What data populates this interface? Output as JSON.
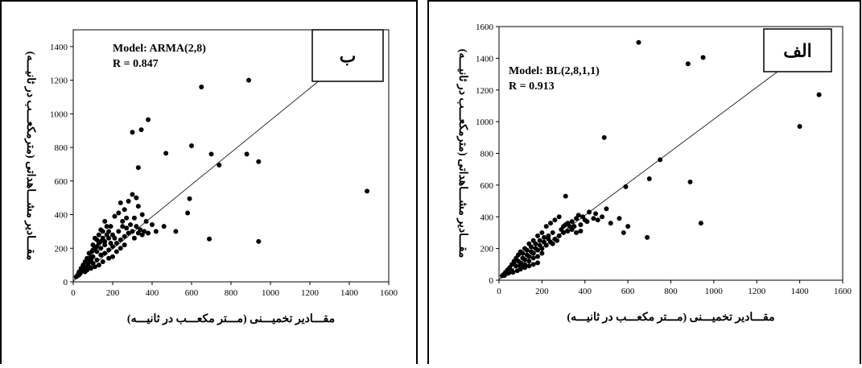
{
  "chart_data": [
    {
      "panel": "ب",
      "type": "scatter",
      "model_label": "Model: ARMA(2,8)",
      "r_label": "R = 0.847",
      "xlabel": "مقـــادیر تخمیـــنی (مـــتر مکعـــب در ثانیـــه)",
      "ylabel": "مقـــادیر مشـــاهداتی (مترمکعـــب در ثانیـــه)",
      "xlim": [
        0,
        1600
      ],
      "ylim": [
        0,
        1500
      ],
      "xticks": [
        0,
        200,
        400,
        600,
        800,
        1000,
        1200,
        1400,
        1600
      ],
      "yticks": [
        0,
        200,
        400,
        600,
        800,
        1000,
        1200,
        1400
      ],
      "fit_line": [
        [
          0,
          5
        ],
        [
          1480,
          1420
        ]
      ],
      "points": [
        [
          650,
          1160
        ],
        [
          890,
          1200
        ],
        [
          380,
          965
        ],
        [
          345,
          905
        ],
        [
          300,
          890
        ],
        [
          600,
          810
        ],
        [
          700,
          760
        ],
        [
          470,
          765
        ],
        [
          880,
          760
        ],
        [
          940,
          715
        ],
        [
          740,
          695
        ],
        [
          330,
          680
        ],
        [
          1490,
          540
        ],
        [
          940,
          240
        ],
        [
          690,
          255
        ],
        [
          590,
          495
        ],
        [
          580,
          410
        ],
        [
          520,
          300
        ],
        [
          460,
          330
        ],
        [
          420,
          300
        ],
        [
          400,
          340
        ],
        [
          370,
          360
        ],
        [
          350,
          400
        ],
        [
          330,
          450
        ],
        [
          320,
          500
        ],
        [
          300,
          520
        ],
        [
          280,
          480
        ],
        [
          260,
          430
        ],
        [
          240,
          470
        ],
        [
          270,
          380
        ],
        [
          250,
          360
        ],
        [
          230,
          410
        ],
        [
          210,
          390
        ],
        [
          190,
          330
        ],
        [
          180,
          300
        ],
        [
          160,
          360
        ],
        [
          170,
          280
        ],
        [
          150,
          260
        ],
        [
          140,
          310
        ],
        [
          130,
          230
        ],
        [
          120,
          250
        ],
        [
          110,
          200
        ],
        [
          100,
          220
        ],
        [
          95,
          180
        ],
        [
          90,
          150
        ],
        [
          80,
          170
        ],
        [
          70,
          140
        ],
        [
          60,
          120
        ],
        [
          50,
          100
        ],
        [
          40,
          80
        ],
        [
          30,
          60
        ],
        [
          25,
          45
        ],
        [
          20,
          35
        ],
        [
          15,
          30
        ],
        [
          60,
          60
        ],
        [
          80,
          90
        ],
        [
          100,
          110
        ],
        [
          120,
          130
        ],
        [
          140,
          160
        ],
        [
          160,
          170
        ],
        [
          180,
          190
        ],
        [
          200,
          210
        ],
        [
          220,
          230
        ],
        [
          240,
          250
        ],
        [
          260,
          270
        ],
        [
          280,
          290
        ],
        [
          300,
          300
        ],
        [
          200,
          150
        ],
        [
          180,
          140
        ],
        [
          150,
          120
        ],
        [
          130,
          100
        ],
        [
          110,
          90
        ],
        [
          90,
          80
        ],
        [
          70,
          70
        ],
        [
          240,
          200
        ],
        [
          260,
          220
        ],
        [
          220,
          180
        ],
        [
          310,
          260
        ],
        [
          330,
          290
        ],
        [
          350,
          280
        ],
        [
          210,
          260
        ],
        [
          190,
          230
        ],
        [
          230,
          300
        ],
        [
          250,
          330
        ],
        [
          120,
          180
        ],
        [
          140,
          200
        ],
        [
          160,
          220
        ],
        [
          100,
          150
        ],
        [
          80,
          120
        ],
        [
          60,
          90
        ],
        [
          130,
          280
        ],
        [
          110,
          260
        ],
        [
          150,
          300
        ],
        [
          170,
          330
        ],
        [
          290,
          340
        ],
        [
          310,
          380
        ],
        [
          270,
          320
        ],
        [
          320,
          330
        ],
        [
          340,
          310
        ],
        [
          360,
          300
        ],
        [
          380,
          290
        ],
        [
          200,
          280
        ],
        [
          180,
          260
        ],
        [
          160,
          240
        ],
        [
          140,
          240
        ],
        [
          120,
          210
        ],
        [
          100,
          190
        ],
        [
          90,
          130
        ],
        [
          75,
          110
        ],
        [
          55,
          75
        ],
        [
          45,
          65
        ],
        [
          35,
          50
        ],
        [
          28,
          40
        ]
      ]
    },
    {
      "panel": "الف",
      "type": "scatter",
      "model_label": "Model: BL(2,8,1,1)",
      "r_label": "R = 0.913",
      "xlabel": "مقـــادیر تخمیـــنی (مـــتر مکعـــب در ثانیـــه)",
      "ylabel": "مقـــادیر مشـــاهداتی (مترمکعـــب در ثانیـــه)",
      "xlim": [
        0,
        1600
      ],
      "ylim": [
        0,
        1600
      ],
      "xticks": [
        0,
        200,
        400,
        600,
        800,
        1000,
        1200,
        1400,
        1600
      ],
      "yticks": [
        0,
        200,
        400,
        600,
        800,
        1000,
        1200,
        1400,
        1600
      ],
      "fit_line": [
        [
          0,
          5
        ],
        [
          1420,
          1440
        ]
      ],
      "points": [
        [
          650,
          1500
        ],
        [
          950,
          1405
        ],
        [
          880,
          1365
        ],
        [
          1490,
          1170
        ],
        [
          1400,
          970
        ],
        [
          490,
          900
        ],
        [
          750,
          760
        ],
        [
          590,
          590
        ],
        [
          700,
          640
        ],
        [
          890,
          620
        ],
        [
          940,
          360
        ],
        [
          690,
          270
        ],
        [
          520,
          360
        ],
        [
          560,
          390
        ],
        [
          600,
          340
        ],
        [
          580,
          300
        ],
        [
          450,
          420
        ],
        [
          420,
          430
        ],
        [
          400,
          380
        ],
        [
          380,
          350
        ],
        [
          360,
          390
        ],
        [
          340,
          370
        ],
        [
          320,
          360
        ],
        [
          300,
          340
        ],
        [
          310,
          530
        ],
        [
          280,
          400
        ],
        [
          260,
          380
        ],
        [
          240,
          360
        ],
        [
          220,
          340
        ],
        [
          200,
          300
        ],
        [
          180,
          280
        ],
        [
          160,
          250
        ],
        [
          140,
          230
        ],
        [
          120,
          200
        ],
        [
          100,
          180
        ],
        [
          90,
          160
        ],
        [
          80,
          140
        ],
        [
          70,
          120
        ],
        [
          60,
          100
        ],
        [
          50,
          80
        ],
        [
          40,
          65
        ],
        [
          30,
          50
        ],
        [
          20,
          35
        ],
        [
          15,
          28
        ],
        [
          60,
          60
        ],
        [
          80,
          90
        ],
        [
          100,
          110
        ],
        [
          120,
          130
        ],
        [
          140,
          150
        ],
        [
          160,
          170
        ],
        [
          180,
          190
        ],
        [
          200,
          200
        ],
        [
          220,
          220
        ],
        [
          240,
          240
        ],
        [
          260,
          260
        ],
        [
          280,
          280
        ],
        [
          300,
          300
        ],
        [
          320,
          310
        ],
        [
          340,
          320
        ],
        [
          360,
          300
        ],
        [
          380,
          310
        ],
        [
          200,
          170
        ],
        [
          180,
          150
        ],
        [
          160,
          140
        ],
        [
          140,
          120
        ],
        [
          120,
          100
        ],
        [
          100,
          90
        ],
        [
          250,
          230
        ],
        [
          270,
          250
        ],
        [
          230,
          260
        ],
        [
          210,
          240
        ],
        [
          190,
          220
        ],
        [
          170,
          200
        ],
        [
          150,
          180
        ],
        [
          130,
          160
        ],
        [
          110,
          140
        ],
        [
          90,
          120
        ],
        [
          70,
          100
        ],
        [
          290,
          320
        ],
        [
          310,
          350
        ],
        [
          330,
          340
        ],
        [
          350,
          340
        ],
        [
          250,
          300
        ],
        [
          230,
          280
        ],
        [
          210,
          270
        ],
        [
          190,
          250
        ],
        [
          170,
          230
        ],
        [
          150,
          210
        ],
        [
          130,
          190
        ],
        [
          110,
          170
        ],
        [
          440,
          390
        ],
        [
          460,
          380
        ],
        [
          480,
          400
        ],
        [
          500,
          450
        ],
        [
          410,
          370
        ],
        [
          390,
          400
        ],
        [
          370,
          410
        ],
        [
          180,
          110
        ],
        [
          160,
          100
        ],
        [
          140,
          90
        ],
        [
          120,
          80
        ],
        [
          100,
          70
        ],
        [
          85,
          60
        ],
        [
          65,
          50
        ],
        [
          45,
          45
        ],
        [
          35,
          42
        ],
        [
          25,
          30
        ]
      ]
    }
  ]
}
